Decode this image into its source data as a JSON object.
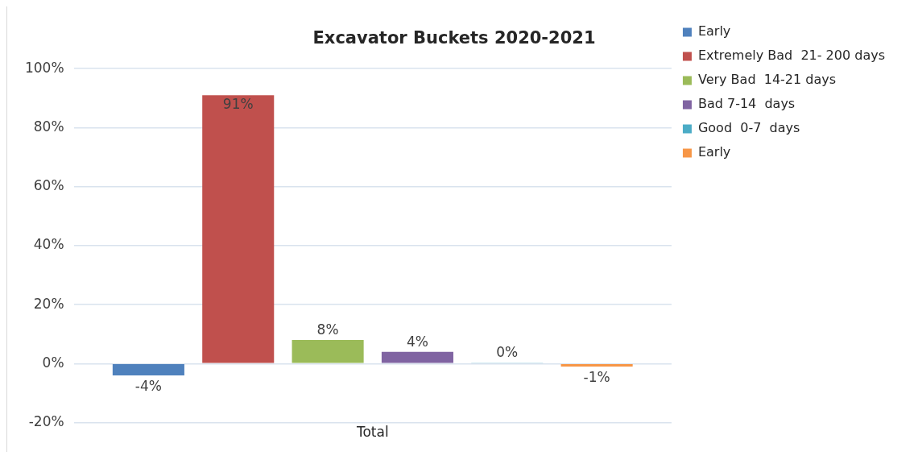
{
  "chart_data": {
    "type": "bar",
    "title": "Excavator Buckets 2020-2021",
    "categories": [
      "Total"
    ],
    "series": [
      {
        "name": "Early",
        "color": "#4f81bd",
        "values": [
          -4
        ],
        "value_labels": [
          "-4%"
        ]
      },
      {
        "name": "Extremely Bad  21- 200 days",
        "color": "#c0504d",
        "values": [
          91
        ],
        "value_labels": [
          "91%"
        ]
      },
      {
        "name": "Very Bad  14-21 days",
        "color": "#9bbb59",
        "values": [
          8
        ],
        "value_labels": [
          "8%"
        ]
      },
      {
        "name": "Bad 7-14  days",
        "color": "#8064a2",
        "values": [
          4
        ],
        "value_labels": [
          "4%"
        ]
      },
      {
        "name": "Good  0-7  days",
        "color": "#4bacc6",
        "values": [
          0.3
        ],
        "value_labels": [
          "0%"
        ]
      },
      {
        "name": "Early",
        "color": "#f79646",
        "values": [
          -1
        ],
        "value_labels": [
          "-1%"
        ]
      }
    ],
    "ylim": [
      -20,
      100
    ],
    "yticks": [
      {
        "value": -20,
        "label": "-20%"
      },
      {
        "value": 0,
        "label": "0%"
      },
      {
        "value": 20,
        "label": "20%"
      },
      {
        "value": 40,
        "label": "40%"
      },
      {
        "value": 60,
        "label": "60%"
      },
      {
        "value": 80,
        "label": "80%"
      },
      {
        "value": 100,
        "label": "100%"
      }
    ],
    "grid": "y",
    "legend": "right"
  }
}
